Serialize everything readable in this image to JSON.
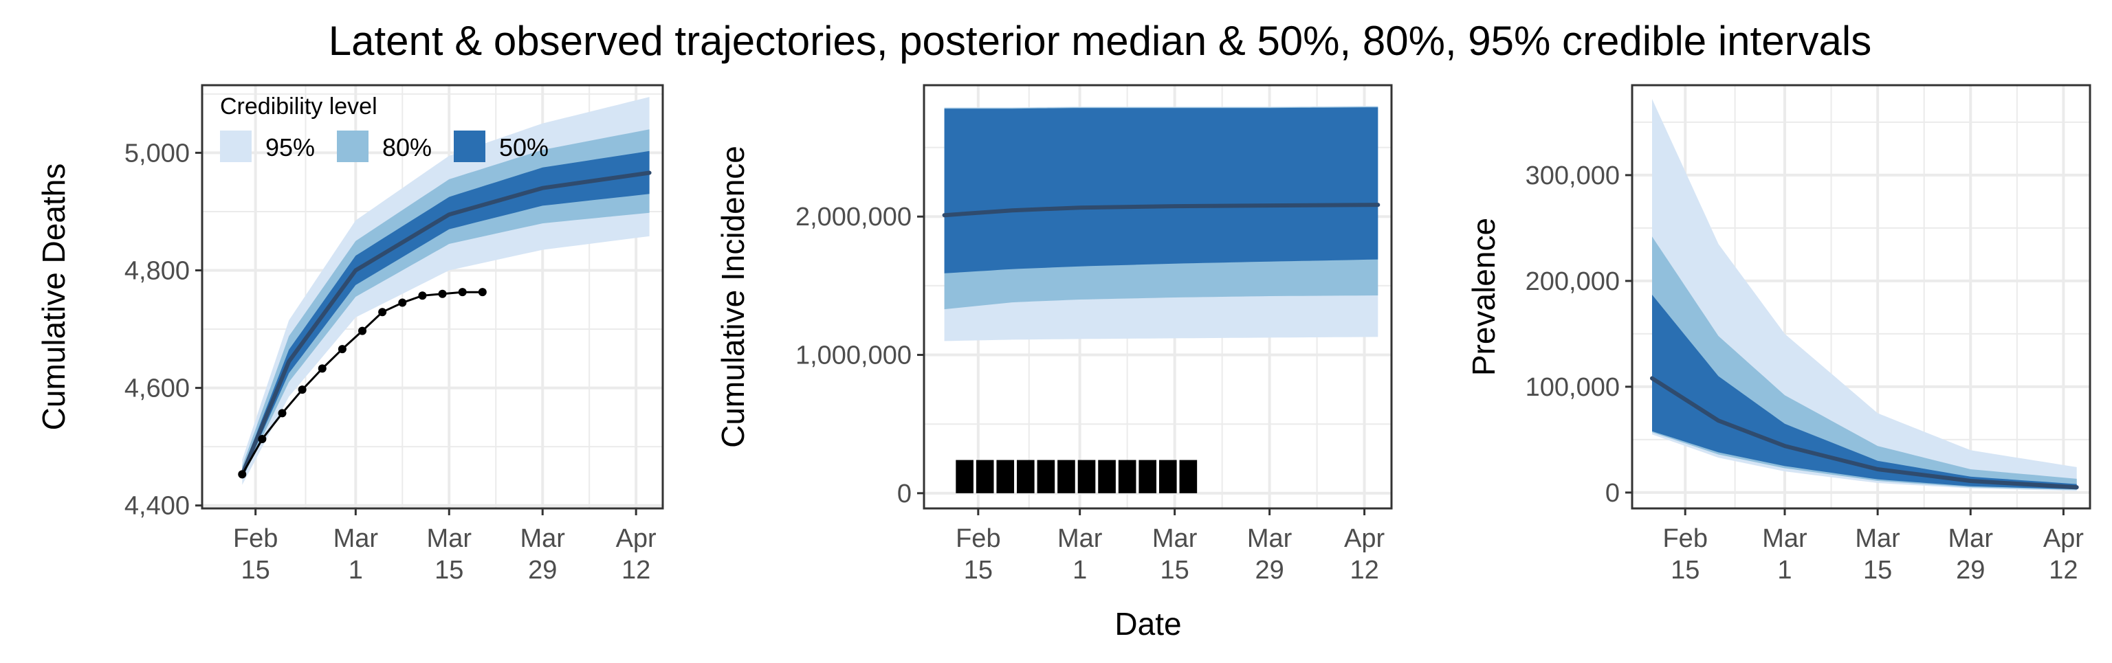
{
  "figure": {
    "title": "Latent & observed trajectories, posterior median & 50%, 80%, 95% credible intervals",
    "xlabel": "Date"
  },
  "legend": {
    "title": "Credibility level",
    "entries": [
      {
        "label": "95%",
        "color": "#d6e5f5"
      },
      {
        "label": "80%",
        "color": "#91bfdc"
      },
      {
        "label": "50%",
        "color": "#2a6fb2"
      }
    ],
    "placement": "top-left of first panel"
  },
  "colors": {
    "band95": "#d6e5f5",
    "band80": "#91bfdc",
    "band50": "#2a6fb2",
    "median": "#2f4b6e",
    "observed": "#000000",
    "grid": "#ebebeb"
  },
  "chart_data": [
    {
      "type": "area",
      "ylabel": "Cumulative Deaths",
      "x_axis": "date",
      "xlim": [
        "2020-02-07",
        "2020-04-16"
      ],
      "ylim": [
        4395,
        5115
      ],
      "y_ticks": [
        4400,
        4600,
        4800,
        5000
      ],
      "y_tick_labels": [
        "4,400",
        "4,600",
        "4,800",
        "5,000"
      ],
      "x_tick_dates": [
        "2020-02-15",
        "2020-03-01",
        "2020-03-15",
        "2020-03-29",
        "2020-04-12"
      ],
      "x_tick_labels": [
        [
          "Feb",
          "15"
        ],
        [
          "Mar",
          "1"
        ],
        [
          "Mar",
          "15"
        ],
        [
          "Mar",
          "29"
        ],
        [
          "Apr",
          "12"
        ]
      ],
      "grid": true,
      "bands": {
        "x": [
          "2020-02-13",
          "2020-02-20",
          "2020-03-01",
          "2020-03-15",
          "2020-03-29",
          "2020-04-14"
        ],
        "q025": [
          4435,
          4585,
          4720,
          4800,
          4835,
          4858
        ],
        "q10": [
          4445,
          4610,
          4755,
          4845,
          4880,
          4898
        ],
        "q25": [
          4448,
          4625,
          4775,
          4870,
          4910,
          4930
        ],
        "q50": [
          4453,
          4645,
          4800,
          4895,
          4940,
          4966
        ],
        "q75": [
          4460,
          4665,
          4825,
          4925,
          4975,
          5003
        ],
        "q90": [
          4467,
          4688,
          4850,
          4955,
          5005,
          5040
        ],
        "q975": [
          4478,
          4715,
          4885,
          4995,
          5050,
          5095
        ]
      },
      "observed": {
        "x": [
          "2020-02-13",
          "2020-02-16",
          "2020-02-19",
          "2020-02-22",
          "2020-02-25",
          "2020-02-28",
          "2020-03-02",
          "2020-03-05",
          "2020-03-08",
          "2020-03-11",
          "2020-03-14",
          "2020-03-17",
          "2020-03-20"
        ],
        "y": [
          4453,
          4513,
          4557,
          4597,
          4633,
          4666,
          4697,
          4729,
          4745,
          4757,
          4760,
          4763,
          4763
        ]
      }
    },
    {
      "type": "area",
      "ylabel": "Cumulative Incidence",
      "x_axis": "date",
      "xlim": [
        "2020-02-07",
        "2020-04-16"
      ],
      "ylim": [
        -110000,
        2950000
      ],
      "y_ticks": [
        0,
        1000000,
        2000000
      ],
      "y_tick_labels": [
        "0",
        "1,000,000",
        "2,000,000"
      ],
      "x_tick_dates": [
        "2020-02-15",
        "2020-03-01",
        "2020-03-15",
        "2020-03-29",
        "2020-04-12"
      ],
      "x_tick_labels": [
        [
          "Feb",
          "15"
        ],
        [
          "Mar",
          "1"
        ],
        [
          "Mar",
          "15"
        ],
        [
          "Mar",
          "29"
        ],
        [
          "Apr",
          "12"
        ]
      ],
      "grid": true,
      "bands": {
        "x": [
          "2020-02-10",
          "2020-02-20",
          "2020-03-01",
          "2020-03-15",
          "2020-03-29",
          "2020-04-14"
        ],
        "q025": [
          1100000,
          1110000,
          1115000,
          1120000,
          1125000,
          1130000
        ],
        "q10": [
          1330000,
          1380000,
          1400000,
          1415000,
          1425000,
          1430000
        ],
        "q25": [
          1590000,
          1620000,
          1640000,
          1660000,
          1675000,
          1690000
        ],
        "q50": [
          2010000,
          2045000,
          2065000,
          2075000,
          2080000,
          2085000
        ],
        "q75": [
          2780000,
          2780000,
          2785000,
          2785000,
          2785000,
          2790000
        ],
        "q90": [
          2785000,
          2785000,
          2790000,
          2790000,
          2790000,
          2795000
        ],
        "q975": [
          2790000,
          2790000,
          2795000,
          2795000,
          2795000,
          2800000
        ]
      },
      "observed_bars": {
        "x": [
          "2020-02-13",
          "2020-02-16",
          "2020-02-19",
          "2020-02-22",
          "2020-02-25",
          "2020-02-28",
          "2020-03-02",
          "2020-03-05",
          "2020-03-08",
          "2020-03-11",
          "2020-03-14",
          "2020-03-17"
        ],
        "y": [
          240000,
          240000,
          240000,
          240000,
          240000,
          240000,
          240000,
          240000,
          240000,
          240000,
          240000,
          240000
        ]
      }
    },
    {
      "type": "area",
      "ylabel": "Prevalence",
      "x_axis": "date",
      "xlim": [
        "2020-02-07",
        "2020-04-16"
      ],
      "ylim": [
        -15000,
        385000
      ],
      "y_ticks": [
        0,
        100000,
        200000,
        300000
      ],
      "y_tick_labels": [
        "0",
        "100,000",
        "200,000",
        "300,000"
      ],
      "x_tick_dates": [
        "2020-02-15",
        "2020-03-01",
        "2020-03-15",
        "2020-03-29",
        "2020-04-12"
      ],
      "x_tick_labels": [
        [
          "Feb",
          "15"
        ],
        [
          "Mar",
          "1"
        ],
        [
          "Mar",
          "15"
        ],
        [
          "Mar",
          "29"
        ],
        [
          "Apr",
          "12"
        ]
      ],
      "grid": true,
      "bands": {
        "x": [
          "2020-02-10",
          "2020-02-20",
          "2020-03-01",
          "2020-03-15",
          "2020-03-29",
          "2020-04-14"
        ],
        "q025": [
          55000,
          33000,
          20000,
          9000,
          4000,
          1500
        ],
        "q10": [
          57000,
          36000,
          23000,
          11000,
          5000,
          2500
        ],
        "q25": [
          58000,
          38000,
          25000,
          12500,
          6000,
          3000
        ],
        "q50": [
          108000,
          68000,
          44000,
          22000,
          11000,
          5000
        ],
        "q75": [
          187000,
          110000,
          65000,
          30000,
          15000,
          8000
        ],
        "q90": [
          242000,
          148000,
          92000,
          44000,
          22000,
          13000
        ],
        "q975": [
          372000,
          235000,
          150000,
          75000,
          40000,
          24000
        ]
      }
    }
  ]
}
